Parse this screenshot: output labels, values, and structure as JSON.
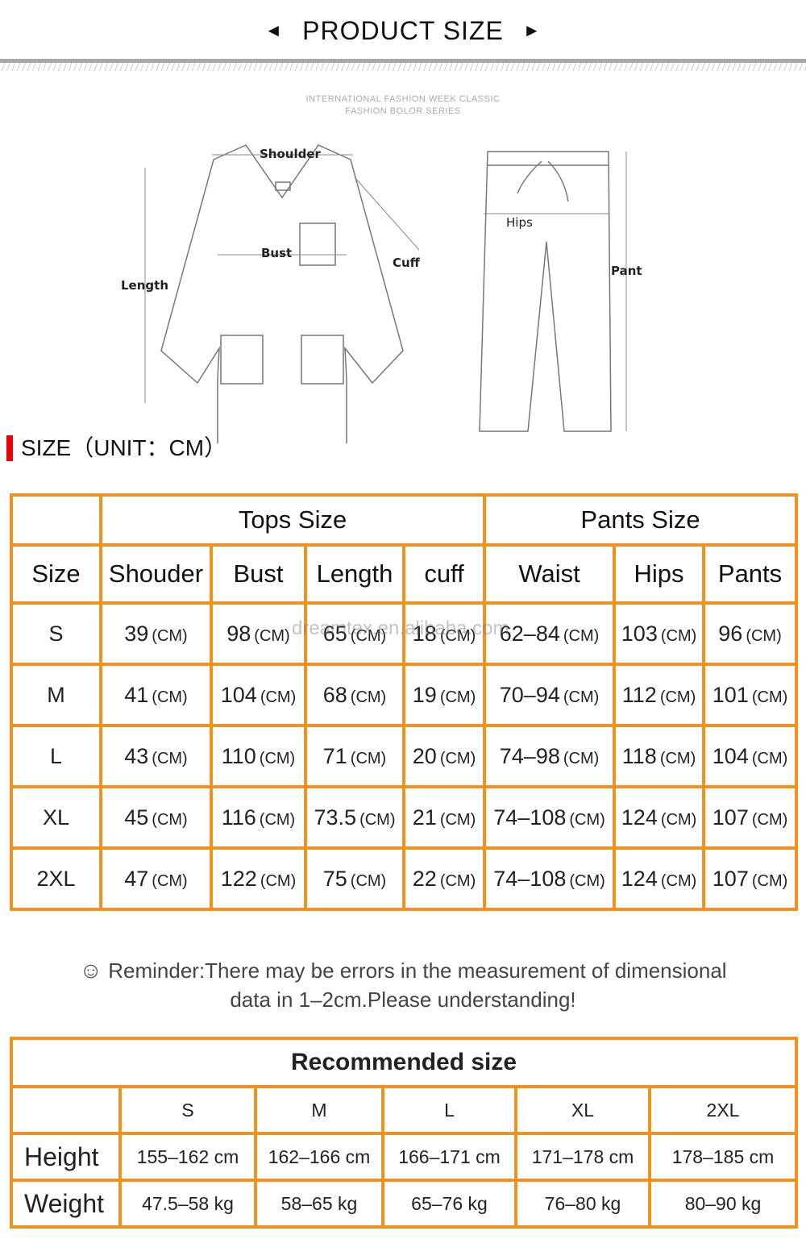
{
  "header": {
    "title": "PRODUCT SIZE",
    "left_arrow": "◄",
    "right_arrow": "►"
  },
  "subtitle": {
    "line1": "INTERNATIONAL FASHION WEEK CLASSIC",
    "line2": "FASHION BOLOR SERIES"
  },
  "diagram": {
    "shoulder": "Shoulder",
    "bust": "Bust",
    "length": "Length",
    "cuff": "Cuff",
    "hips": "Hips",
    "pant": "Pant"
  },
  "size_heading": "SIZE（UNIT：CM）",
  "size_table": {
    "group_headers": {
      "tops": "Tops Size",
      "pants": "Pants Size"
    },
    "columns": [
      "Size",
      "Shouder",
      "Bust",
      "Length",
      "cuff",
      "Waist",
      "Hips",
      "Pants"
    ],
    "unit": "(CM)",
    "rows": [
      [
        "S",
        "39",
        "98",
        "65",
        "18",
        "62–84",
        "103",
        "96"
      ],
      [
        "M",
        "41",
        "104",
        "68",
        "19",
        "70–94",
        "112",
        "101"
      ],
      [
        "L",
        "43",
        "110",
        "71",
        "20",
        "74–98",
        "118",
        "104"
      ],
      [
        "XL",
        "45",
        "116",
        "73.5",
        "21",
        "74–108",
        "124",
        "107"
      ],
      [
        "2XL",
        "47",
        "122",
        "75",
        "22",
        "74–108",
        "124",
        "107"
      ]
    ]
  },
  "watermark": "dreamtex.en.alibaba.com",
  "reminder": {
    "icon": "smile-icon",
    "line1": "Reminder:There may be errors in the measurement of dimensional",
    "line2": "data in 1–2cm.Please understanding!"
  },
  "recommended": {
    "title": "Recommended size",
    "sizes": [
      "S",
      "M",
      "L",
      "XL",
      "2XL"
    ],
    "height": {
      "label": "Height",
      "values": [
        "155–162 cm",
        "162–166 cm",
        "166–171 cm",
        "171–178 cm",
        "178–185 cm"
      ]
    },
    "weight": {
      "label": "Weight",
      "values": [
        "47.5–58 kg",
        "58–65 kg",
        "65–76 kg",
        "76–80 kg",
        "80–90 kg"
      ]
    }
  },
  "colors": {
    "table_border": "#f0921e",
    "heading_bar": "#e00000"
  }
}
